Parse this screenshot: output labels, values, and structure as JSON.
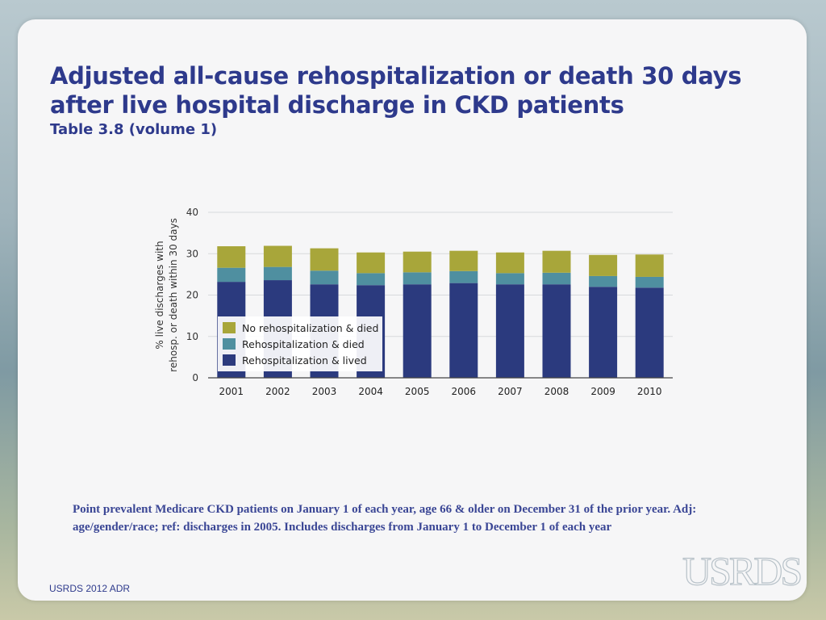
{
  "slide": {
    "title": "Adjusted all-cause rehospitalization or death 30 days after live hospital discharge in CKD patients",
    "subtitle": "Table 3.8 (volume 1)",
    "footnote": "Point prevalent Medicare CKD patients on January 1 of each year, age 66 & older on December 31 of the prior year. Adj: age/gender/race; ref: discharges in 2005. Includes discharges from January 1 to December 1 of each year",
    "footer": "USRDS 2012 ADR",
    "logo_text": "USRDS"
  },
  "chart_data": {
    "type": "bar",
    "stacked": true,
    "title": "",
    "ylabel": "% live discharges with rehosp. or death within 30 days",
    "ylabel_lines": [
      "% live discharges with",
      "rehosp. or death within 30 days"
    ],
    "xlabel": "",
    "ylim": [
      0,
      40
    ],
    "yticks": [
      0,
      10,
      20,
      30,
      40
    ],
    "grid": true,
    "legend_position": "bottom-left",
    "categories": [
      "2001",
      "2002",
      "2003",
      "2004",
      "2005",
      "2006",
      "2007",
      "2008",
      "2009",
      "2010"
    ],
    "series": [
      {
        "name": "Rehospitalization & lived",
        "color": "#2b3a7e",
        "values": [
          23.2,
          23.6,
          22.6,
          22.4,
          22.6,
          22.9,
          22.6,
          22.6,
          22.0,
          21.8
        ]
      },
      {
        "name": "Rehospitalization & died",
        "color": "#4f8fa0",
        "values": [
          3.4,
          3.2,
          3.3,
          2.9,
          2.9,
          2.9,
          2.7,
          2.8,
          2.6,
          2.6
        ]
      },
      {
        "name": "No rehospitalization & died",
        "color": "#a8a63a",
        "values": [
          5.2,
          5.1,
          5.4,
          5.0,
          5.0,
          4.9,
          5.0,
          5.3,
          5.1,
          5.4
        ]
      }
    ],
    "legend_order": [
      "No rehospitalization & died",
      "Rehospitalization & died",
      "Rehospitalization & lived"
    ]
  }
}
